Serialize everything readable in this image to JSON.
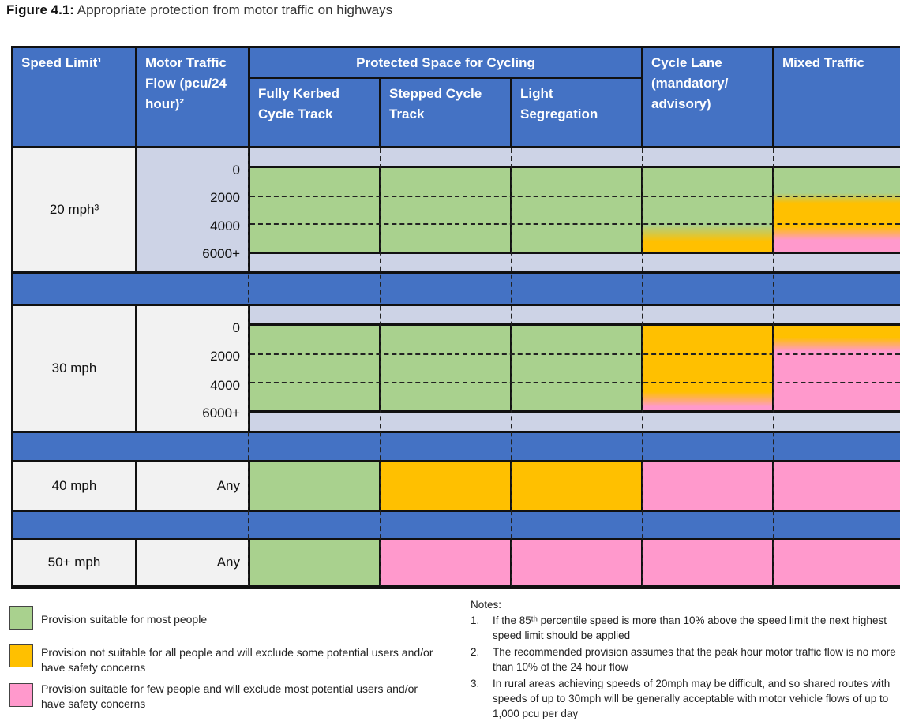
{
  "title": {
    "label": "Figure 4.1:",
    "text": "Appropriate protection from motor traffic on highways"
  },
  "header": {
    "speed_limit": "Speed Limit¹",
    "flow": "Motor Traffic Flow (pcu/24 hour)²",
    "protected": "Protected Space for Cycling",
    "kerbed": "Fully Kerbed Cycle Track",
    "stepped": "Stepped Cycle Track",
    "light": "Light Segregation",
    "cycle_lane": "Cycle Lane (mandatory/ advisory)",
    "mixed": "Mixed Traffic"
  },
  "rows": {
    "r20": {
      "speed": "20 mph³",
      "ticks": [
        "0",
        "2000",
        "4000",
        "6000+"
      ]
    },
    "r30": {
      "speed": "30 mph",
      "ticks": [
        "0",
        "2000",
        "4000",
        "6000+"
      ]
    },
    "r40": {
      "speed": "40 mph",
      "flow": "Any"
    },
    "r50": {
      "speed": "50+ mph",
      "flow": "Any"
    }
  },
  "colors": {
    "green": "#a9d18e",
    "orange": "#ffc000",
    "pink": "#ff99cc",
    "blue": "#4472c4"
  },
  "legend": [
    {
      "text": "Provision suitable for most people",
      "color": "#a9d18e"
    },
    {
      "text": "Provision not suitable for all people and will exclude some potential users and/or have safety concerns",
      "color": "#ffc000"
    },
    {
      "text": "Provision suitable for few people and will exclude most potential users and/or have safety concerns",
      "color": "#ff99cc"
    }
  ],
  "notes": {
    "heading": "Notes:",
    "items": [
      {
        "num": "1.",
        "text": "If the 85ᵗʰ percentile speed is more than 10% above the speed limit the next highest speed limit should be applied"
      },
      {
        "num": "2.",
        "text": "The recommended provision assumes that the peak hour motor traffic flow is no more than 10% of the 24 hour flow"
      },
      {
        "num": "3.",
        "text": "In rural areas achieving speeds of 20mph may be difficult, and so shared routes with speeds of up to 30mph will be generally acceptable with motor vehicle flows of up to 1,000 pcu per day"
      }
    ]
  }
}
